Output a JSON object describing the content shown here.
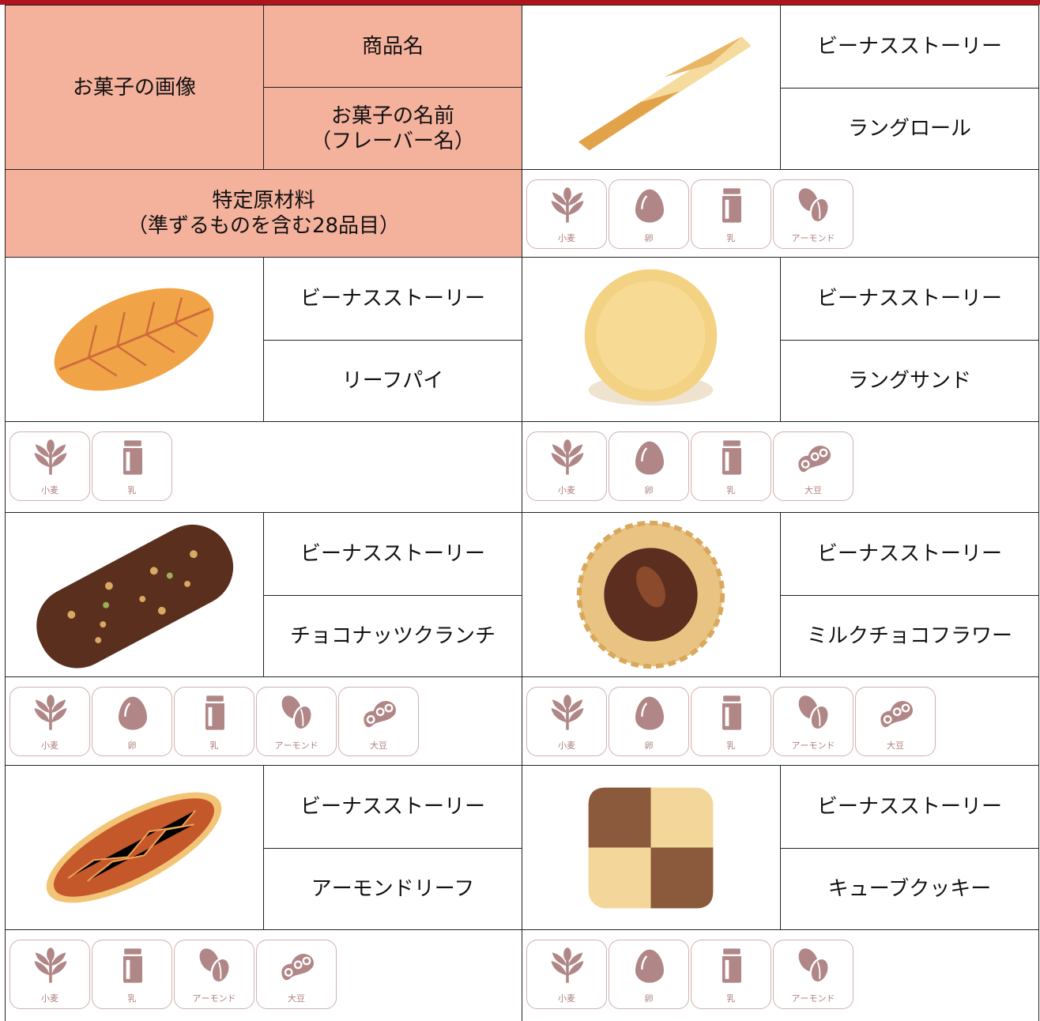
{
  "header": {
    "image_label": "お菓子の画像",
    "product_label": "商品名",
    "name_label": [
      "お菓子の名前",
      "（フレーバー名）"
    ],
    "allergen_label": [
      "特定原材料",
      "（準ずるものを含む28品目）"
    ]
  },
  "items": [
    {
      "product": "ビーナスストーリー",
      "name": "ラングロール",
      "allergens": [
        "小麦",
        "卵",
        "乳",
        "アーモンド"
      ]
    },
    {
      "product": "ビーナスストーリー",
      "name": "リーフパイ",
      "allergens": [
        "小麦",
        "乳"
      ]
    },
    {
      "product": "ビーナスストーリー",
      "name": "ラングサンド",
      "allergens": [
        "小麦",
        "卵",
        "乳",
        "大豆"
      ]
    },
    {
      "product": "ビーナスストーリー",
      "name": "チョコナッツクランチ",
      "allergens": [
        "小麦",
        "卵",
        "乳",
        "アーモンド",
        "大豆"
      ]
    },
    {
      "product": "ビーナスストーリー",
      "name": "ミルクチョコフラワー",
      "allergens": [
        "小麦",
        "卵",
        "乳",
        "アーモンド",
        "大豆"
      ]
    },
    {
      "product": "ビーナスストーリー",
      "name": "アーモンドリーフ",
      "allergens": [
        "小麦",
        "乳",
        "アーモンド",
        "大豆"
      ]
    },
    {
      "product": "ビーナスストーリー",
      "name": "キューブクッキー",
      "allergens": [
        "小麦",
        "卵",
        "乳",
        "アーモンド"
      ]
    }
  ]
}
